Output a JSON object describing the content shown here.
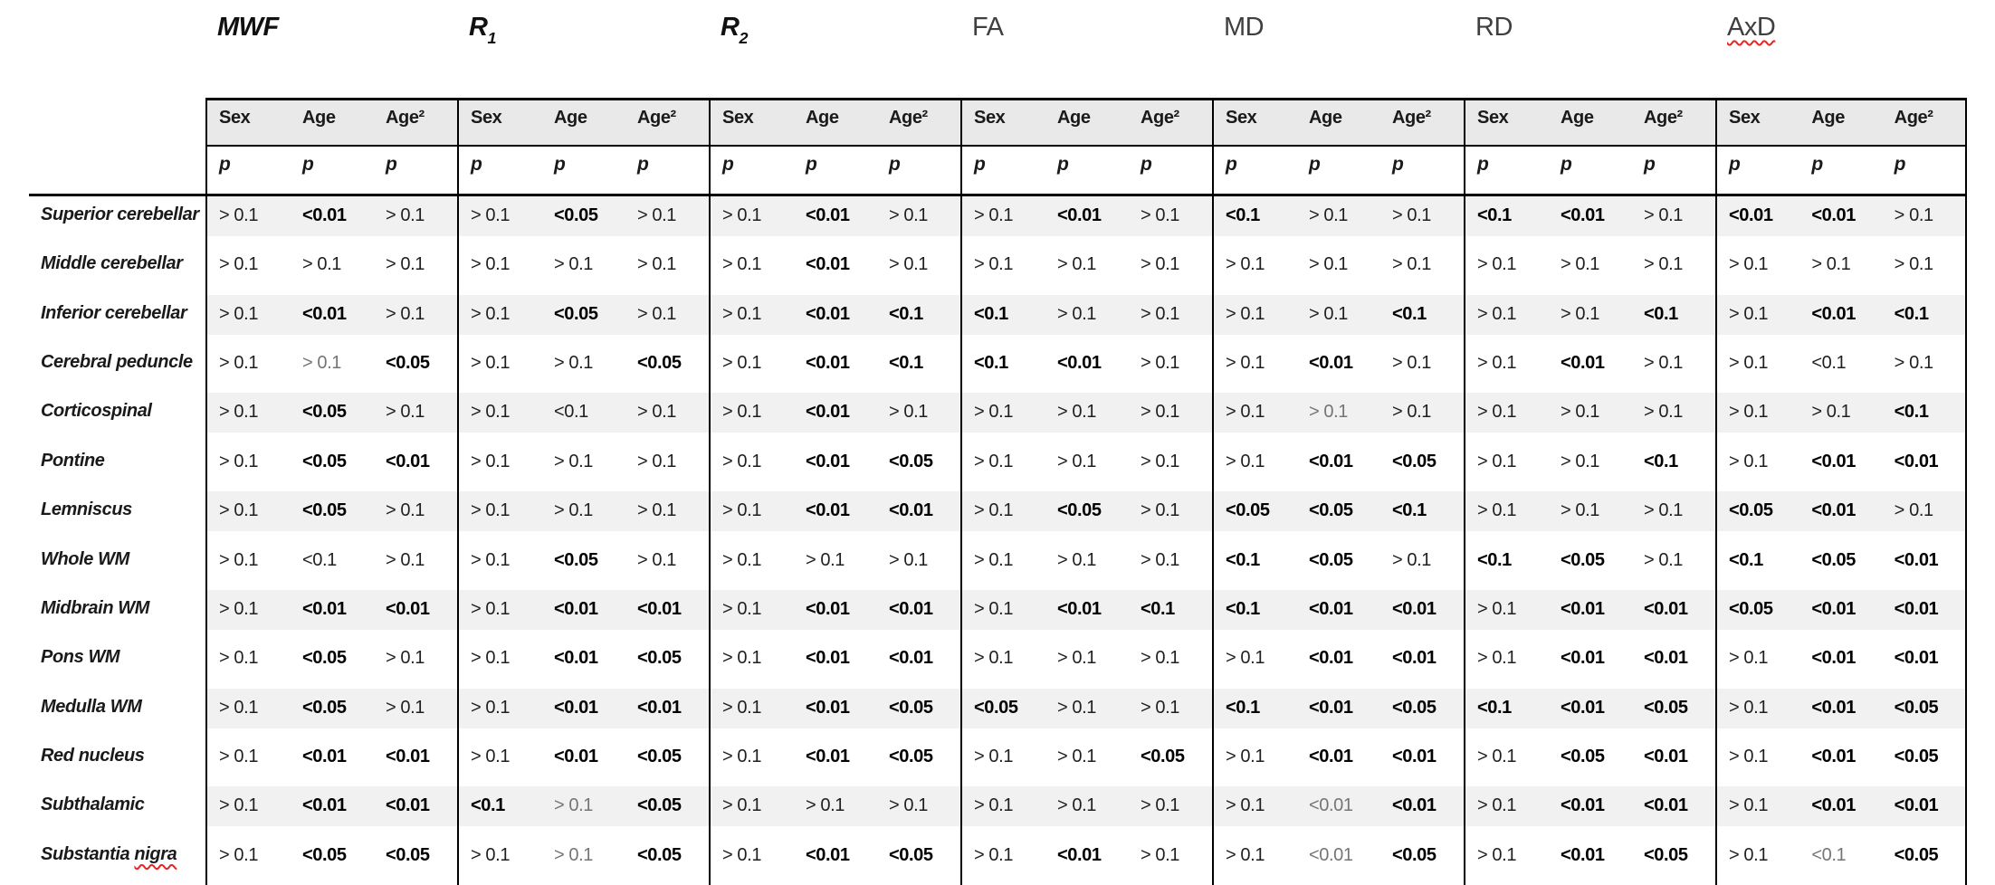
{
  "table": {
    "metrics": [
      {
        "name": "MWF",
        "style": "italic-bold"
      },
      {
        "name": "R",
        "style": "italic-bold",
        "subscript": "1"
      },
      {
        "name": "R",
        "style": "italic-bold",
        "subscript": "2"
      },
      {
        "name": "FA",
        "style": "plain"
      },
      {
        "name": "MD",
        "style": "plain"
      },
      {
        "name": "RD",
        "style": "plain"
      },
      {
        "name": "AxD",
        "style": "plain",
        "spellcheck_underline": true
      }
    ],
    "sub_headers": [
      "Sex",
      "Age",
      "Age²"
    ],
    "stat_label": "p",
    "cell_style_legend": {
      "n": "normal",
      "b": "bold",
      "g": "gray"
    },
    "rows": [
      {
        "label": "Superior cerebellar",
        "cells": [
          "n|> 0.1",
          "b|<0.01",
          "n|> 0.1",
          "n|> 0.1",
          "b|<0.05",
          "n|> 0.1",
          "n|> 0.1",
          "b|<0.01",
          "n|> 0.1",
          "n|> 0.1",
          "b|<0.01",
          "n|> 0.1",
          "b|<0.1",
          "n|> 0.1",
          "n|> 0.1",
          "b|<0.1",
          "b|<0.01",
          "n|> 0.1",
          "b|<0.01",
          "b|<0.01",
          "n|> 0.1"
        ]
      },
      {
        "label": "Middle cerebellar",
        "cells": [
          "n|> 0.1",
          "n|> 0.1",
          "n|> 0.1",
          "n|> 0.1",
          "n|> 0.1",
          "n|> 0.1",
          "n|> 0.1",
          "b|<0.01",
          "n|> 0.1",
          "n|> 0.1",
          "n|> 0.1",
          "n|> 0.1",
          "n|> 0.1",
          "n|> 0.1",
          "n|> 0.1",
          "n|> 0.1",
          "n|> 0.1",
          "n|> 0.1",
          "n|> 0.1",
          "n|> 0.1",
          "n|> 0.1"
        ]
      },
      {
        "label": "Inferior cerebellar",
        "cells": [
          "n|> 0.1",
          "b|<0.01",
          "n|> 0.1",
          "n|> 0.1",
          "b|<0.05",
          "n|> 0.1",
          "n|> 0.1",
          "b|<0.01",
          "b|<0.1",
          "b|<0.1",
          "n|> 0.1",
          "n|> 0.1",
          "n|> 0.1",
          "n|> 0.1",
          "b|<0.1",
          "n|> 0.1",
          "n|> 0.1",
          "b|<0.1",
          "n|> 0.1",
          "b|<0.01",
          "b|<0.1"
        ]
      },
      {
        "label": "Cerebral peduncle",
        "cells": [
          "n|> 0.1",
          "g|> 0.1",
          "b|<0.05",
          "n|> 0.1",
          "n|> 0.1",
          "b|<0.05",
          "n|> 0.1",
          "b|<0.01",
          "b|<0.1",
          "b|<0.1",
          "b|<0.01",
          "n|> 0.1",
          "n|> 0.1",
          "b|<0.01",
          "n|> 0.1",
          "n|> 0.1",
          "b|<0.01",
          "n|> 0.1",
          "n|> 0.1",
          "n|<0.1",
          "n|> 0.1"
        ]
      },
      {
        "label": "Corticospinal",
        "cells": [
          "n|> 0.1",
          "b|<0.05",
          "n|> 0.1",
          "n|> 0.1",
          "n|<0.1",
          "n|> 0.1",
          "n|> 0.1",
          "b|<0.01",
          "n|> 0.1",
          "n|> 0.1",
          "n|> 0.1",
          "n|> 0.1",
          "n|> 0.1",
          "g|> 0.1",
          "n|> 0.1",
          "n|> 0.1",
          "n|> 0.1",
          "n|> 0.1",
          "n|> 0.1",
          "n|> 0.1",
          "b|<0.1"
        ]
      },
      {
        "label": "Pontine",
        "cells": [
          "n|> 0.1",
          "b|<0.05",
          "b|<0.01",
          "n|> 0.1",
          "n|> 0.1",
          "n|> 0.1",
          "n|> 0.1",
          "b|<0.01",
          "b|<0.05",
          "n|> 0.1",
          "n|> 0.1",
          "n|> 0.1",
          "n|> 0.1",
          "b|<0.01",
          "b|<0.05",
          "n|> 0.1",
          "n|> 0.1",
          "b|<0.1",
          "n|> 0.1",
          "b|<0.01",
          "b|<0.01"
        ]
      },
      {
        "label": "Lemniscus",
        "cells": [
          "n|> 0.1",
          "b|<0.05",
          "n|> 0.1",
          "n|> 0.1",
          "n|> 0.1",
          "n|> 0.1",
          "n|> 0.1",
          "b|<0.01",
          "b|<0.01",
          "n|> 0.1",
          "b|<0.05",
          "n|> 0.1",
          "b|<0.05",
          "b|<0.05",
          "b|<0.1",
          "n|> 0.1",
          "n|> 0.1",
          "n|> 0.1",
          "b|<0.05",
          "b|<0.01",
          "n|> 0.1"
        ]
      },
      {
        "label": "Whole WM",
        "cells": [
          "n|> 0.1",
          "n|<0.1",
          "n|> 0.1",
          "n|> 0.1",
          "b|<0.05",
          "n|> 0.1",
          "n|> 0.1",
          "n|> 0.1",
          "n|> 0.1",
          "n|> 0.1",
          "n|> 0.1",
          "n|> 0.1",
          "b|<0.1",
          "b|<0.05",
          "n|> 0.1",
          "b|<0.1",
          "b|<0.05",
          "n|> 0.1",
          "b|<0.1",
          "b|<0.05",
          "b|<0.01"
        ]
      },
      {
        "label": "Midbrain WM",
        "cells": [
          "n|> 0.1",
          "b|<0.01",
          "b|<0.01",
          "n|> 0.1",
          "b|<0.01",
          "b|<0.01",
          "n|> 0.1",
          "b|<0.01",
          "b|<0.01",
          "n|> 0.1",
          "b|<0.01",
          "b|<0.1",
          "b|<0.1",
          "b|<0.01",
          "b|<0.01",
          "n|> 0.1",
          "b|<0.01",
          "b|<0.01",
          "b|<0.05",
          "b|<0.01",
          "b|<0.01"
        ]
      },
      {
        "label": "Pons WM",
        "cells": [
          "n|> 0.1",
          "b|<0.05",
          "n|> 0.1",
          "n|> 0.1",
          "b|<0.01",
          "b|<0.05",
          "n|> 0.1",
          "b|<0.01",
          "b|<0.01",
          "n|> 0.1",
          "n|> 0.1",
          "n|> 0.1",
          "n|> 0.1",
          "b|<0.01",
          "b|<0.01",
          "n|> 0.1",
          "b|<0.01",
          "b|<0.01",
          "n|> 0.1",
          "b|<0.01",
          "b|<0.01"
        ]
      },
      {
        "label": "Medulla WM",
        "cells": [
          "n|> 0.1",
          "b|<0.05",
          "n|> 0.1",
          "n|> 0.1",
          "b|<0.01",
          "b|<0.01",
          "n|> 0.1",
          "b|<0.01",
          "b|<0.05",
          "b|<0.05",
          "n|> 0.1",
          "n|> 0.1",
          "b|<0.1",
          "b|<0.01",
          "b|<0.05",
          "b|<0.1",
          "b|<0.01",
          "b|<0.05",
          "n|> 0.1",
          "b|<0.01",
          "b|<0.05"
        ]
      },
      {
        "label": "Red nucleus",
        "cells": [
          "n|> 0.1",
          "b|<0.01",
          "b|<0.01",
          "n|> 0.1",
          "b|<0.01",
          "b|<0.05",
          "n|> 0.1",
          "b|<0.01",
          "b|<0.05",
          "n|> 0.1",
          "n|> 0.1",
          "b|<0.05",
          "n|> 0.1",
          "b|<0.01",
          "b|<0.01",
          "n|> 0.1",
          "b|<0.05",
          "b|<0.01",
          "n|> 0.1",
          "b|<0.01",
          "b|<0.05"
        ]
      },
      {
        "label": "Subthalamic",
        "cells": [
          "n|> 0.1",
          "b|<0.01",
          "b|<0.01",
          "b|<0.1",
          "g|> 0.1",
          "b|<0.05",
          "n|> 0.1",
          "n|> 0.1",
          "n|> 0.1",
          "n|> 0.1",
          "n|> 0.1",
          "n|> 0.1",
          "n|> 0.1",
          "g|<0.01",
          "b|<0.01",
          "n|> 0.1",
          "b|<0.01",
          "b|<0.01",
          "n|> 0.1",
          "b|<0.01",
          "b|<0.01"
        ]
      },
      {
        "label": "Substantia nigra",
        "misspelled_part": "nigra",
        "cells": [
          "n|> 0.1",
          "b|<0.05",
          "b|<0.05",
          "n|> 0.1",
          "g|> 0.1",
          "b|<0.05",
          "n|> 0.1",
          "b|<0.01",
          "b|<0.05",
          "n|> 0.1",
          "b|<0.01",
          "n|> 0.1",
          "n|> 0.1",
          "g|<0.01",
          "b|<0.05",
          "n|> 0.1",
          "b|<0.01",
          "b|<0.05",
          "n|> 0.1",
          "g|<0.1",
          "b|<0.05"
        ]
      }
    ]
  },
  "colors": {
    "header_bg": "#e9e9e9",
    "band_bg": "#f1f1f1",
    "border": "#000000",
    "gray_text": "#757575",
    "spellcheck_red": "#e8251f"
  }
}
